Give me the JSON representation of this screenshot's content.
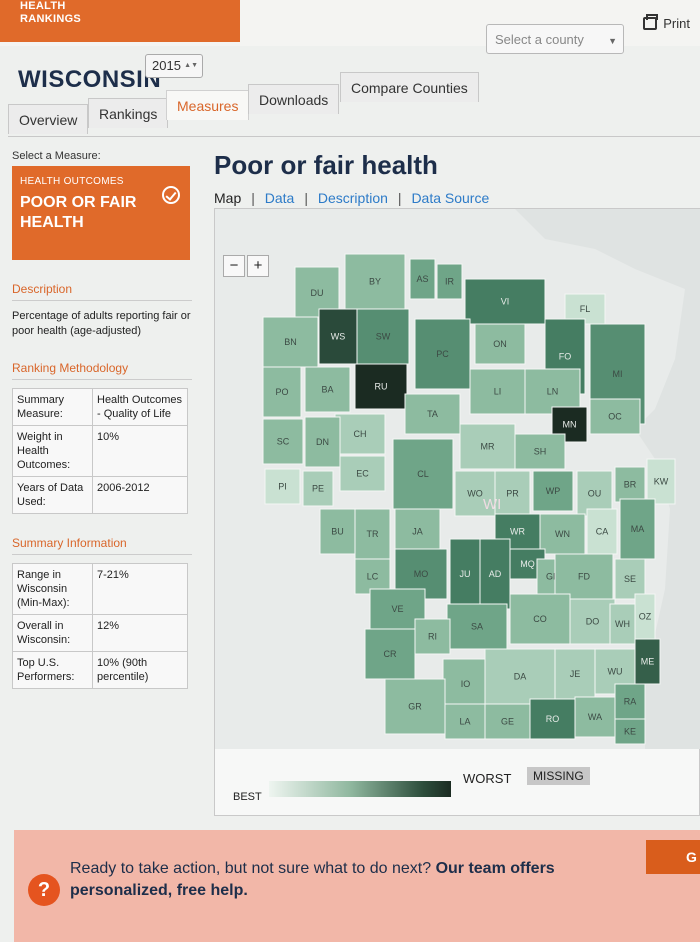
{
  "header": {
    "brand_line1": "HEALTH",
    "brand_line2": "RANKINGS",
    "print_label": "Print",
    "county_placeholder": "Select a county"
  },
  "state": {
    "name": "WISCONSIN",
    "year": "2015"
  },
  "tabs": [
    "Overview",
    "Rankings",
    "Measures",
    "Downloads",
    "Compare Counties"
  ],
  "active_tab": "Measures",
  "sidebar": {
    "select_label": "Select a Measure:",
    "measure_category": "HEALTH OUTCOMES",
    "measure_name_1": "POOR OR FAIR",
    "measure_name_2": "HEALTH",
    "description_heading": "Description",
    "description_text": "Percentage of adults reporting fair or poor health (age-adjusted)",
    "methodology_heading": "Ranking Methodology",
    "methodology_rows": [
      [
        "Summary Measure:",
        "Health Outcomes - Quality of Life"
      ],
      [
        "Weight in Health Outcomes:",
        "10%"
      ],
      [
        "Years of Data Used:",
        "2006-2012"
      ]
    ],
    "summary_heading": "Summary Information",
    "summary_rows": [
      [
        "Range in Wisconsin (Min-Max):",
        "7-21%"
      ],
      [
        "Overall in Wisconsin:",
        "12%"
      ],
      [
        "Top U.S. Performers:",
        "10% (90th percentile)"
      ]
    ]
  },
  "main": {
    "title": "Poor or fair health",
    "subnav": {
      "map": "Map",
      "data": "Data",
      "description": "Description",
      "source": "Data Source"
    },
    "zoom_out": "−",
    "zoom_in": "+",
    "state_label": "WI",
    "legend_best": "BEST",
    "legend_worst": "WORST",
    "legend_missing": "MISSING"
  },
  "counties": [
    {
      "code": "DU",
      "shade": 3
    },
    {
      "code": "BY",
      "shade": 3
    },
    {
      "code": "AS",
      "shade": 4
    },
    {
      "code": "IR",
      "shade": 4
    },
    {
      "code": "VI",
      "shade": 6
    },
    {
      "code": "FL",
      "shade": 1
    },
    {
      "code": "BN",
      "shade": 3
    },
    {
      "code": "WS",
      "shade": 8
    },
    {
      "code": "SW",
      "shade": 5
    },
    {
      "code": "PC",
      "shade": 5
    },
    {
      "code": "ON",
      "shade": 3
    },
    {
      "code": "FO",
      "shade": 6
    },
    {
      "code": "MI",
      "shade": 5
    },
    {
      "code": "PO",
      "shade": 3
    },
    {
      "code": "BA",
      "shade": 3
    },
    {
      "code": "RU",
      "shade": 9
    },
    {
      "code": "LI",
      "shade": 3
    },
    {
      "code": "LN",
      "shade": 3
    },
    {
      "code": "TA",
      "shade": 3
    },
    {
      "code": "MN",
      "shade": 9
    },
    {
      "code": "OC",
      "shade": 3
    },
    {
      "code": "CH",
      "shade": 2
    },
    {
      "code": "SC",
      "shade": 3
    },
    {
      "code": "DN",
      "shade": 3
    },
    {
      "code": "MR",
      "shade": 2
    },
    {
      "code": "SH",
      "shade": 3
    },
    {
      "code": "EC",
      "shade": 2
    },
    {
      "code": "CL",
      "shade": 4
    },
    {
      "code": "PI",
      "shade": 1
    },
    {
      "code": "PE",
      "shade": 2
    },
    {
      "code": "WO",
      "shade": 2
    },
    {
      "code": "PR",
      "shade": 2
    },
    {
      "code": "WP",
      "shade": 4
    },
    {
      "code": "OU",
      "shade": 2
    },
    {
      "code": "BR",
      "shade": 3
    },
    {
      "code": "KW",
      "shade": 1
    },
    {
      "code": "BU",
      "shade": 3
    },
    {
      "code": "TR",
      "shade": 3
    },
    {
      "code": "JA",
      "shade": 3
    },
    {
      "code": "WR",
      "shade": 6
    },
    {
      "code": "WN",
      "shade": 3
    },
    {
      "code": "CA",
      "shade": 1
    },
    {
      "code": "MA",
      "shade": 4
    },
    {
      "code": "LC",
      "shade": 3
    },
    {
      "code": "MO",
      "shade": 5
    },
    {
      "code": "JU",
      "shade": 6
    },
    {
      "code": "AD",
      "shade": 6
    },
    {
      "code": "MQ",
      "shade": 6
    },
    {
      "code": "GL",
      "shade": 3
    },
    {
      "code": "FD",
      "shade": 3
    },
    {
      "code": "SE",
      "shade": 2
    },
    {
      "code": "VE",
      "shade": 4
    },
    {
      "code": "SA",
      "shade": 4
    },
    {
      "code": "CO",
      "shade": 3
    },
    {
      "code": "DO",
      "shade": 2
    },
    {
      "code": "WH",
      "shade": 2
    },
    {
      "code": "OZ",
      "shade": 1
    },
    {
      "code": "RI",
      "shade": 3
    },
    {
      "code": "CR",
      "shade": 4
    },
    {
      "code": "IO",
      "shade": 3
    },
    {
      "code": "DA",
      "shade": 2
    },
    {
      "code": "JE",
      "shade": 2
    },
    {
      "code": "WU",
      "shade": 2
    },
    {
      "code": "ME",
      "shade": 7
    },
    {
      "code": "GR",
      "shade": 3
    },
    {
      "code": "LA",
      "shade": 3
    },
    {
      "code": "GE",
      "shade": 3
    },
    {
      "code": "RO",
      "shade": 6
    },
    {
      "code": "WA",
      "shade": 3
    },
    {
      "code": "RA",
      "shade": 4
    },
    {
      "code": "KE",
      "shade": 4
    }
  ],
  "banner": {
    "icon": "?",
    "text_plain": "Ready to take action, but not sure what to do next? ",
    "text_bold_1": "Our team offers",
    "text_bold_2": "personalized, free help.",
    "button_label": "G"
  },
  "colors": {
    "accent": "#e06a2a",
    "map_dark": "#1b2b22",
    "map_light": "#dfeee4"
  }
}
